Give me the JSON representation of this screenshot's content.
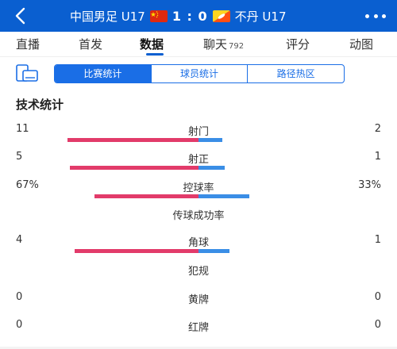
{
  "header": {
    "home_team": "中国男足 U17",
    "score": "1 : 0",
    "away_team": "不丹 U17",
    "back_icon": "chevron-left-icon",
    "more_icon": "more-dots-icon"
  },
  "tabs": [
    {
      "label": "直播"
    },
    {
      "label": "首发"
    },
    {
      "label": "数据",
      "active": true
    },
    {
      "label": "聊天",
      "count": "792"
    },
    {
      "label": "评分"
    },
    {
      "label": "动图"
    }
  ],
  "segments": [
    "比赛统计",
    "球员统计",
    "路径热区"
  ],
  "section_title": "技术统计",
  "colors": {
    "home": "#e23b6a",
    "away": "#3a8ee6",
    "brand": "#0a5fd0"
  },
  "stats": [
    {
      "name": "射门",
      "left": "11",
      "right": "2",
      "left_share": 0.846,
      "right_share": 0.154
    },
    {
      "name": "射正",
      "left": "5",
      "right": "1",
      "left_share": 0.833,
      "right_share": 0.167
    },
    {
      "name": "控球率",
      "left": "67%",
      "right": "33%",
      "left_share": 0.67,
      "right_share": 0.33
    },
    {
      "name": "传球成功率",
      "left": "",
      "right": ""
    },
    {
      "name": "角球",
      "left": "4",
      "right": "1",
      "left_share": 0.8,
      "right_share": 0.2
    },
    {
      "name": "犯规",
      "left": "",
      "right": ""
    },
    {
      "name": "黄牌",
      "left": "0",
      "right": "0"
    },
    {
      "name": "红牌",
      "left": "0",
      "right": "0"
    }
  ]
}
